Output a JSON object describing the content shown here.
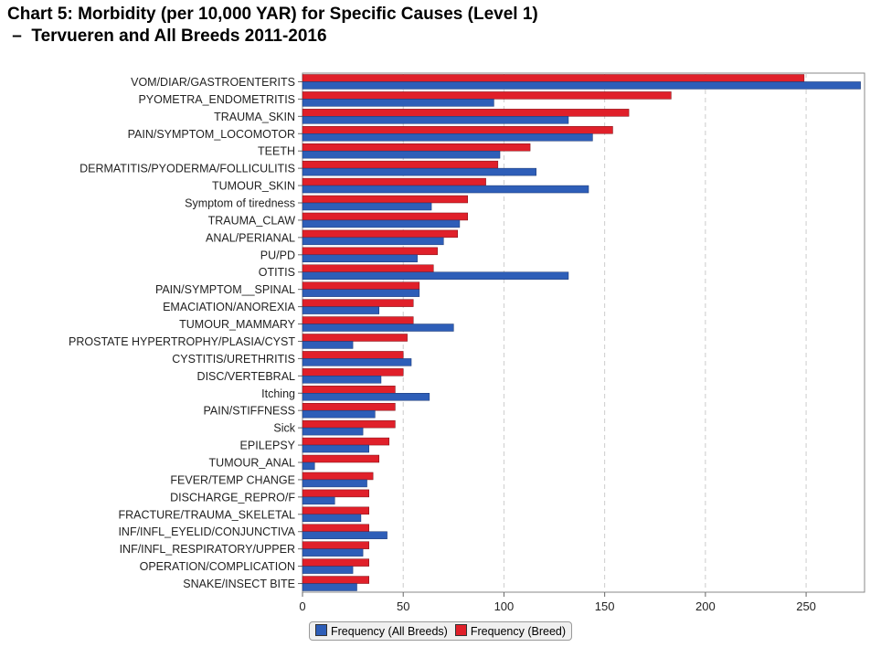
{
  "chart_data": {
    "type": "bar",
    "orientation": "horizontal",
    "title": "Chart 5: Morbidity (per 10,000 YAR) for Specific Causes (Level 1)",
    "subtitle": " –  Tervueren and All Breeds 2011-2016",
    "xlim": [
      0,
      279
    ],
    "xticks": [
      0,
      50,
      100,
      150,
      200,
      250
    ],
    "grid": "vertical dashed",
    "legend_position": "bottom",
    "categories": [
      "VOM/DIAR/GASTROENTERITS",
      "PYOMETRA_ENDOMETRITIS",
      "TRAUMA_SKIN",
      "PAIN/SYMPTOM_LOCOMOTOR",
      "TEETH",
      "DERMATITIS/PYODERMA/FOLLICULITIS",
      "TUMOUR_SKIN",
      "Symptom of tiredness",
      "TRAUMA_CLAW",
      "ANAL/PERIANAL",
      "PU/PD",
      "OTITIS",
      "PAIN/SYMPTOM__SPINAL",
      "EMACIATION/ANOREXIA",
      "TUMOUR_MAMMARY",
      "PROSTATE HYPERTROPHY/PLASIA/CYST",
      "CYSTITIS/URETHRITIS",
      "DISC/VERTEBRAL",
      "Itching",
      "PAIN/STIFFNESS",
      "Sick",
      "EPILEPSY",
      "TUMOUR_ANAL",
      "FEVER/TEMP CHANGE",
      "DISCHARGE_REPRO/F",
      "FRACTURE/TRAUMA_SKELETAL",
      "INF/INFL_EYELID/CONJUNCTIVA",
      "INF/INFL_RESPIRATORY/UPPER",
      "OPERATION/COMPLICATION",
      "SNAKE/INSECT BITE"
    ],
    "series": [
      {
        "name": "Frequency (All Breeds)",
        "color": "#2e5eb8",
        "values": [
          277,
          95,
          132,
          144,
          98,
          116,
          142,
          64,
          78,
          70,
          57,
          132,
          58,
          38,
          75,
          25,
          54,
          39,
          63,
          36,
          30,
          33,
          6,
          32,
          16,
          29,
          42,
          30,
          25,
          27
        ]
      },
      {
        "name": "Frequency (Breed)",
        "color": "#e0202a",
        "values": [
          249,
          183,
          162,
          154,
          113,
          97,
          91,
          82,
          82,
          77,
          67,
          65,
          58,
          55,
          55,
          52,
          50,
          50,
          46,
          46,
          46,
          43,
          38,
          35,
          33,
          33,
          33,
          33,
          33,
          33
        ]
      }
    ]
  }
}
